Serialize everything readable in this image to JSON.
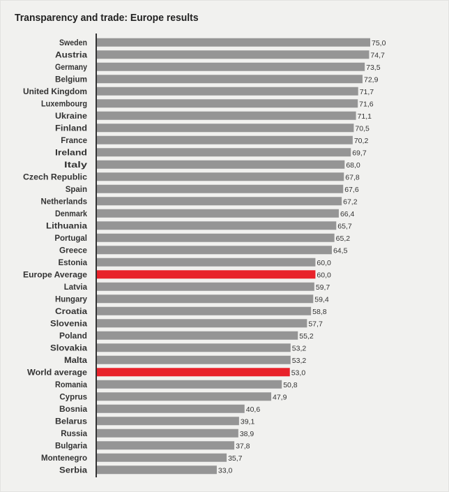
{
  "chart_data": {
    "type": "bar",
    "orientation": "horizontal",
    "title": "Transparency and trade: Europe results",
    "xlabel": "",
    "ylabel": "",
    "xlim": [
      0,
      75
    ],
    "categories": [
      "Sweden",
      "Austria",
      "Germany",
      "Belgium",
      "United Kingdom",
      "Luxembourg",
      "Ukraine",
      "Finland",
      "France",
      "Ireland",
      "Italy",
      "Czech Republic",
      "Spain",
      "Netherlands",
      "Denmark",
      "Lithuania",
      "Portugal",
      "Greece",
      "Estonia",
      "Europe Average",
      "Latvia",
      "Hungary",
      "Croatia",
      "Slovenia",
      "Poland",
      "Slovakia",
      "Malta",
      "World average",
      "Romania",
      "Cyprus",
      "Bosnia",
      "Belarus",
      "Russia",
      "Bulgaria",
      "Montenegro",
      "Serbia"
    ],
    "values": [
      75.0,
      74.7,
      73.5,
      72.9,
      71.7,
      71.6,
      71.1,
      70.5,
      70.2,
      69.7,
      68.0,
      67.8,
      67.6,
      67.2,
      66.4,
      65.7,
      65.2,
      64.5,
      60.0,
      60.0,
      59.7,
      59.4,
      58.8,
      57.7,
      55.2,
      53.2,
      53.2,
      53.0,
      50.8,
      47.9,
      40.6,
      39.1,
      38.9,
      37.8,
      35.7,
      33.0
    ],
    "value_labels": [
      "75,0",
      "74,7",
      "73,5",
      "72,9",
      "71,7",
      "71,6",
      "71,1",
      "70,5",
      "70,2",
      "69,7",
      "68,0",
      "67,8",
      "67,6",
      "67,2",
      "66,4",
      "65,7",
      "65,2",
      "64,5",
      "60,0",
      "60,0",
      "59,7",
      "59,4",
      "58,8",
      "57,7",
      "55,2",
      "53,2",
      "53,2",
      "53,0",
      "50,8",
      "47,9",
      "40,6",
      "39,1",
      "38,9",
      "37,8",
      "35,7",
      "33,0"
    ],
    "highlight": [
      "Europe Average",
      "World average"
    ],
    "colors": {
      "bar": "#959595",
      "highlight": "#e8222a",
      "axis": "#333333"
    }
  }
}
